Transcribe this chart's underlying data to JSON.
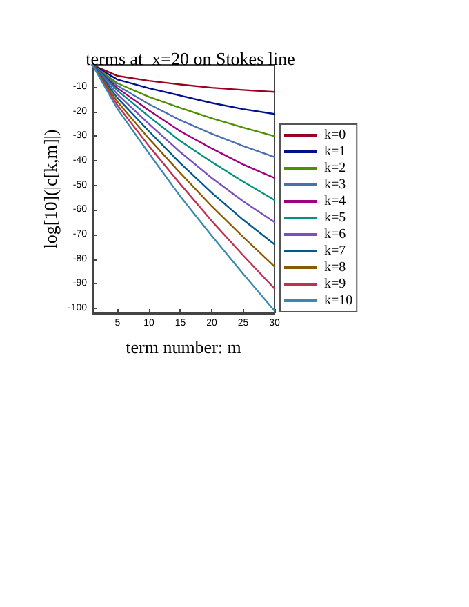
{
  "chart_data": {
    "type": "line",
    "title": "terms at  x=20 on Stokes line",
    "xlabel": "term number: m",
    "ylabel": "log[10](|c[k,m]|)",
    "x": [
      1,
      5,
      10,
      15,
      20,
      25,
      30
    ],
    "series": [
      {
        "name": "k=0",
        "color": "#990022",
        "values": [
          -1,
          -5.5,
          -7.5,
          -9,
          -10.3,
          -11.2,
          -12
        ]
      },
      {
        "name": "k=1",
        "color": "#00108b",
        "values": [
          -1,
          -7,
          -10.5,
          -13.5,
          -16.5,
          -19,
          -21
        ]
      },
      {
        "name": "k=2",
        "color": "#4d8f00",
        "values": [
          -1,
          -8.5,
          -14,
          -18.5,
          -22.7,
          -26.5,
          -30
        ]
      },
      {
        "name": "k=3",
        "color": "#4a6fb0",
        "values": [
          -1,
          -9.5,
          -17,
          -23.5,
          -29,
          -34,
          -38.5
        ]
      },
      {
        "name": "k=4",
        "color": "#a0007f",
        "values": [
          -1,
          -10.5,
          -19.5,
          -28,
          -35,
          -41.5,
          -47
        ]
      },
      {
        "name": "k=5",
        "color": "#00917f",
        "values": [
          -1,
          -11.5,
          -22,
          -32,
          -40.5,
          -48.5,
          -56
        ]
      },
      {
        "name": "k=6",
        "color": "#7a4fc0",
        "values": [
          -1,
          -13,
          -25,
          -36.5,
          -47,
          -56.5,
          -65
        ]
      },
      {
        "name": "k=7",
        "color": "#005a8c",
        "values": [
          -1,
          -14.5,
          -28,
          -41,
          -53,
          -64,
          -74
        ]
      },
      {
        "name": "k=8",
        "color": "#8b5a00",
        "values": [
          -1,
          -16,
          -31,
          -45,
          -58.5,
          -71,
          -83
        ]
      },
      {
        "name": "k=9",
        "color": "#c03050",
        "values": [
          -1,
          -17.5,
          -34,
          -49.5,
          -64.5,
          -78.5,
          -92
        ]
      },
      {
        "name": "k=10",
        "color": "#3a8ab0",
        "values": [
          -1,
          -19,
          -37,
          -54.5,
          -70.5,
          -86,
          -101
        ]
      }
    ],
    "xlim": [
      1,
      30
    ],
    "xticks": [
      5,
      10,
      15,
      20,
      25,
      30
    ],
    "ylim": [
      -102,
      -1
    ],
    "yticks": [
      -10,
      -20,
      -30,
      -40,
      -50,
      -60,
      -70,
      -80,
      -90,
      -100
    ],
    "legend": "right",
    "grid": false,
    "marker": "none",
    "line_style": "solid"
  }
}
